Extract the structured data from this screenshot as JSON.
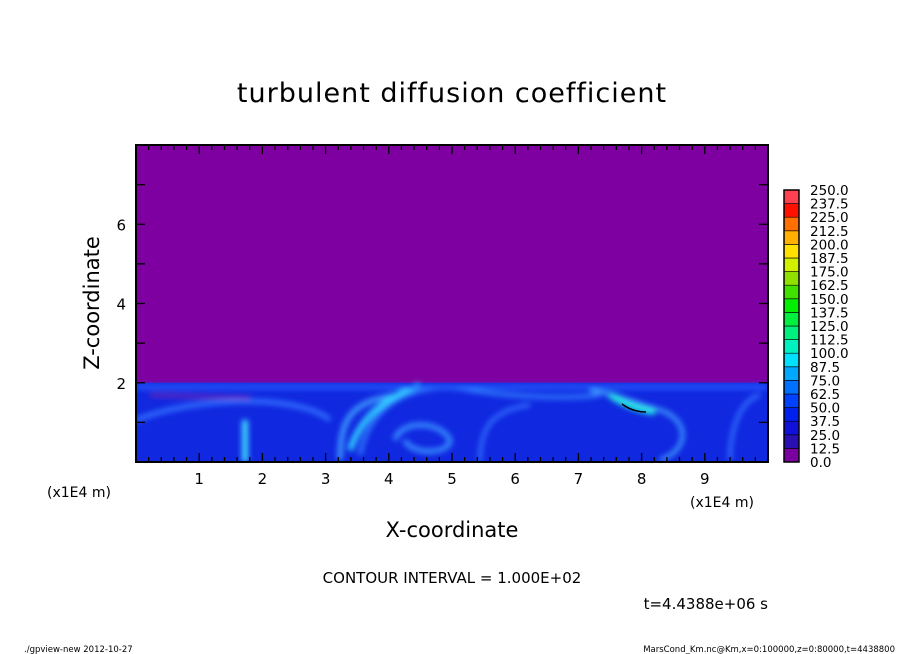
{
  "chart_data": {
    "type": "heatmap",
    "title": "turbulent diffusion coefficient",
    "xlabel": "X-coordinate",
    "ylabel": "Z-coordinate",
    "x_unit": "(x1E4 m)",
    "y_unit": "(x1E4 m)",
    "xlim": [
      0,
      10
    ],
    "ylim": [
      0,
      8
    ],
    "xticks": [
      1,
      2,
      3,
      4,
      5,
      6,
      7,
      8,
      9
    ],
    "yticks": [
      2,
      4,
      6
    ],
    "background_value": 0.0,
    "active_layer_top": 2,
    "contour_interval_text": "CONTOUR INTERVAL = 1.000E+02",
    "time_text": "t=4.4388e+06 s",
    "colorbar": {
      "levels": [
        "0.0",
        "12.5",
        "25.0",
        "37.5",
        "50.0",
        "62.5",
        "75.0",
        "87.5",
        "100.0",
        "112.5",
        "125.0",
        "137.5",
        "150.0",
        "162.5",
        "175.0",
        "187.5",
        "200.0",
        "212.5",
        "225.0",
        "237.5",
        "250.0"
      ],
      "colors": [
        "#7a00a0",
        "#2a10b0",
        "#1010d8",
        "#0020f0",
        "#0040ff",
        "#0070ff",
        "#00a8ff",
        "#00e0ff",
        "#00f0c0",
        "#00f080",
        "#00f040",
        "#00f000",
        "#40e000",
        "#90e000",
        "#d0f000",
        "#ffe000",
        "#ffb000",
        "#ff7000",
        "#ff1000",
        "#ff4050"
      ]
    }
  },
  "footer": {
    "left": "./gpview-new   2012-10-27",
    "right": "MarsCond_Km.nc@Km,x=0:100000,z=0:80000,t=4438800"
  }
}
